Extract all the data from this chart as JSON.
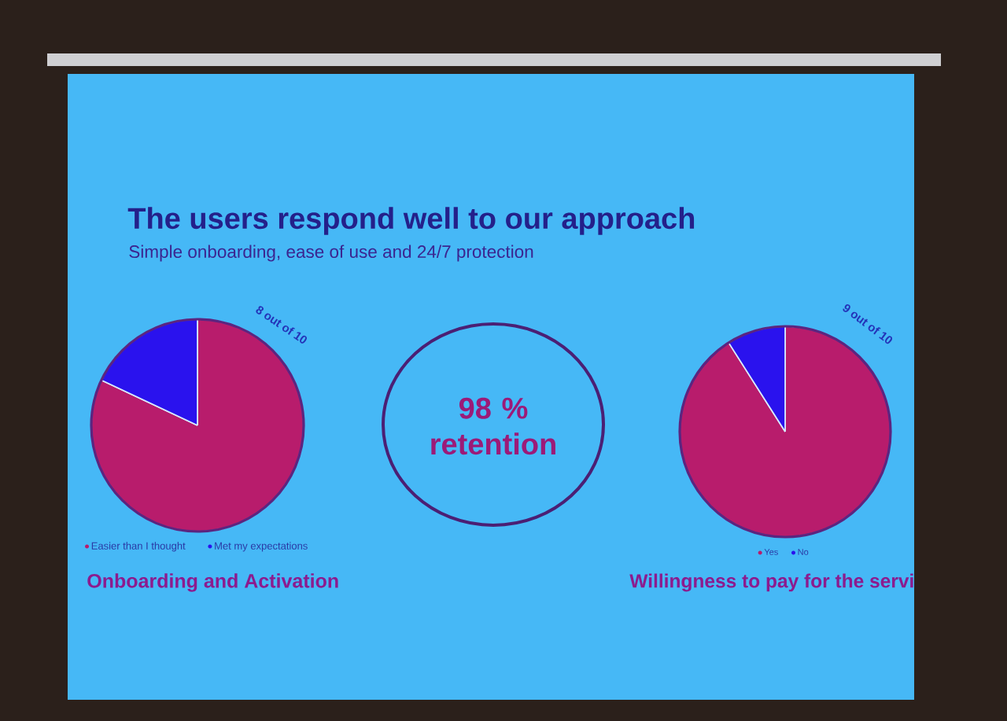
{
  "chart_data": [
    {
      "type": "other",
      "title": "The users respond well to our approach",
      "subtitle": "Simple onboarding, ease of use and 24/7 protection"
    },
    {
      "type": "pie",
      "title": "Onboarding and Activation",
      "categories": [
        "Easier than I thought",
        "Met my expectations"
      ],
      "values": [
        82,
        18
      ],
      "colors": [
        "#b81c6c",
        "#2a12ee"
      ],
      "legend": "bottom",
      "annotations": [
        "8 out of 10"
      ]
    },
    {
      "type": "other",
      "title": "98 % retention",
      "color": "#4b1f74"
    },
    {
      "type": "pie",
      "title": "Willingness to pay for the servi",
      "categories": [
        "Yes",
        "No"
      ],
      "values": [
        91,
        9
      ],
      "colors": [
        "#b81c6c",
        "#2a12ee"
      ],
      "legend": "bottom",
      "annotations": [
        "9 out of 10"
      ]
    }
  ]
}
